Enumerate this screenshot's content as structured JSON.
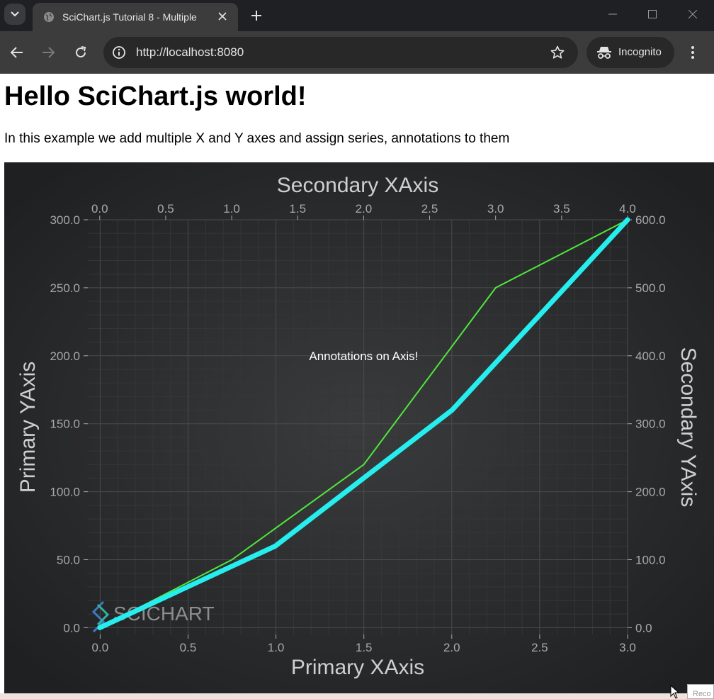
{
  "browser": {
    "tab_title": "SciChart.js Tutorial 8 - Multiple",
    "url": "http://localhost:8080",
    "incognito_label": "Incognito",
    "corner_text": "Reco"
  },
  "page": {
    "heading": "Hello SciChart.js world!",
    "description": "In this example we add multiple X and Y axes and assign series, annotations to them"
  },
  "chart_data": {
    "type": "line",
    "theme": {
      "background": "#2b2c2e",
      "text": "#a8a9ab",
      "title_text": "#cfcfcf",
      "grid_major": "#4a4b4d",
      "grid_minor": "#353638"
    },
    "axes": {
      "x_primary": {
        "title": "Primary XAxis",
        "position": "bottom",
        "range": [
          -0.07,
          3.0
        ],
        "ticks": [
          0.0,
          0.5,
          1.0,
          1.5,
          2.0,
          2.5,
          3.0
        ],
        "tick_labels": [
          "0.0",
          "0.5",
          "1.0",
          "1.5",
          "2.0",
          "2.5",
          "3.0"
        ]
      },
      "x_secondary": {
        "title": "Secondary XAxis",
        "position": "top",
        "range": [
          -0.09,
          4.0
        ],
        "ticks": [
          0.0,
          0.5,
          1.0,
          1.5,
          2.0,
          2.5,
          3.0,
          3.5,
          4.0
        ],
        "tick_labels": [
          "0.0",
          "0.5",
          "1.0",
          "1.5",
          "2.0",
          "2.5",
          "3.0",
          "3.5",
          "4.0"
        ]
      },
      "y_primary": {
        "title": "Primary YAxis",
        "position": "left",
        "range": [
          -5,
          300
        ],
        "ticks": [
          0,
          50,
          100,
          150,
          200,
          250,
          300
        ],
        "tick_labels": [
          "0.0",
          "50.0",
          "100.0",
          "150.0",
          "200.0",
          "250.0",
          "300.0"
        ]
      },
      "y_secondary": {
        "title": "Secondary YAxis",
        "position": "right",
        "range": [
          -10,
          600
        ],
        "ticks": [
          0,
          100,
          200,
          300,
          400,
          500,
          600
        ],
        "tick_labels": [
          "0.0",
          "100.0",
          "200.0",
          "300.0",
          "400.0",
          "500.0",
          "600.0"
        ]
      }
    },
    "series": [
      {
        "x_axis": "x_primary",
        "y_axis": "y_primary",
        "color": "#4ee83a",
        "x": [
          0,
          0.75,
          1.5,
          2.25,
          3.0
        ],
        "y": [
          0,
          50,
          120,
          250,
          300
        ]
      },
      {
        "x_axis": "x_secondary",
        "y_axis": "y_secondary",
        "color": "#26eeee",
        "x": [
          0,
          1.33,
          2.67,
          4.0
        ],
        "y": [
          0,
          120,
          320,
          600
        ]
      }
    ],
    "annotations": [
      {
        "text": "Annotations on Axis!",
        "x": 2.0,
        "y": 200,
        "x_axis": "x_secondary",
        "y_axis": "y_primary"
      }
    ],
    "watermark": "SCICHART",
    "grid": true,
    "legend": false
  }
}
